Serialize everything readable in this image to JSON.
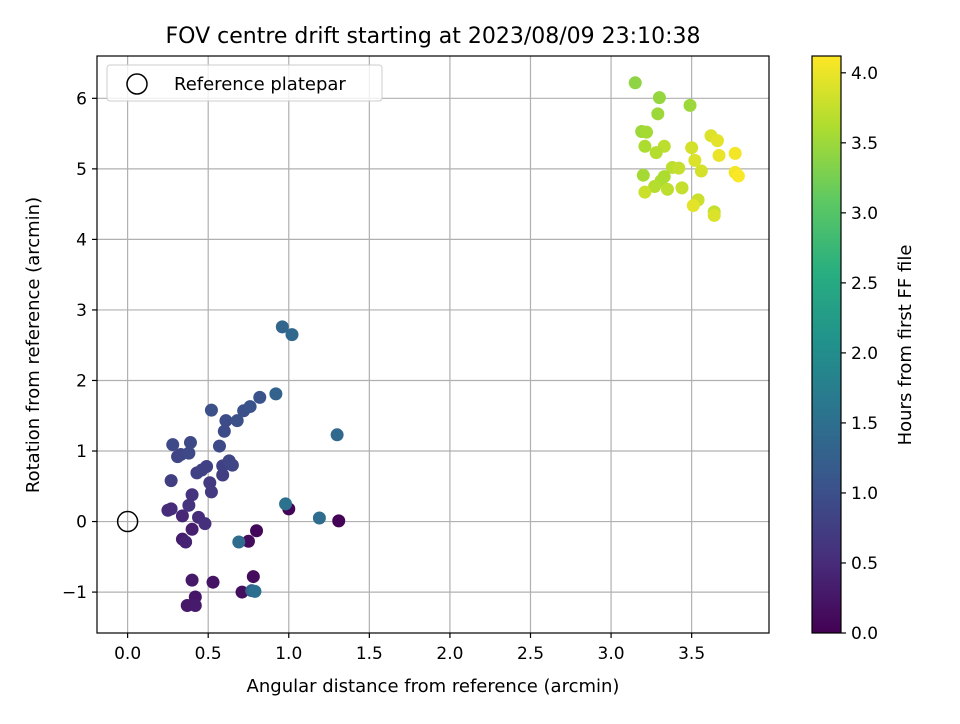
{
  "chart_data": {
    "type": "scatter",
    "title": "FOV centre drift starting at 2023/08/09 23:10:38",
    "xlabel": "Angular distance from reference (arcmin)",
    "ylabel": "Rotation from reference (arcmin)",
    "xlim": [
      -0.19,
      3.98
    ],
    "ylim": [
      -1.58,
      6.6
    ],
    "x_ticks": [
      "0.0",
      "0.5",
      "1.0",
      "1.5",
      "2.0",
      "2.5",
      "3.0",
      "3.5"
    ],
    "y_ticks": [
      "−1",
      "0",
      "1",
      "2",
      "3",
      "4",
      "5",
      "6"
    ],
    "grid": true,
    "legend": {
      "location": "top-left",
      "entries": [
        "Reference platepar"
      ]
    },
    "colorbar": {
      "label": "Hours from first FF file",
      "colormap": "viridis",
      "range": [
        0.0,
        4.12
      ],
      "ticks": [
        "0.0",
        "0.5",
        "1.0",
        "1.5",
        "2.0",
        "2.5",
        "3.0",
        "3.5",
        "4.0"
      ]
    },
    "reference_point": {
      "x": 0.0,
      "y": 0.0
    },
    "points": [
      {
        "x": 1.31,
        "y": 0.01,
        "c": 0.02
      },
      {
        "x": 1.0,
        "y": 0.18,
        "c": 0.05
      },
      {
        "x": 0.8,
        "y": -0.13,
        "c": 0.08
      },
      {
        "x": 0.75,
        "y": -0.28,
        "c": 0.12
      },
      {
        "x": 0.78,
        "y": -0.78,
        "c": 0.12
      },
      {
        "x": 0.71,
        "y": -1.0,
        "c": 0.16
      },
      {
        "x": 0.53,
        "y": -0.86,
        "c": 0.22
      },
      {
        "x": 0.4,
        "y": -0.83,
        "c": 0.28
      },
      {
        "x": 0.42,
        "y": -1.07,
        "c": 0.25
      },
      {
        "x": 0.37,
        "y": -1.19,
        "c": 0.28
      },
      {
        "x": 0.42,
        "y": -1.19,
        "c": 0.3
      },
      {
        "x": 0.34,
        "y": -0.25,
        "c": 0.33
      },
      {
        "x": 0.36,
        "y": -0.29,
        "c": 0.4
      },
      {
        "x": 0.4,
        "y": -0.11,
        "c": 0.35
      },
      {
        "x": 0.34,
        "y": 0.08,
        "c": 0.45
      },
      {
        "x": 0.25,
        "y": 0.16,
        "c": 0.5
      },
      {
        "x": 0.27,
        "y": 0.18,
        "c": 0.5
      },
      {
        "x": 0.44,
        "y": 0.06,
        "c": 0.5
      },
      {
        "x": 0.48,
        "y": -0.03,
        "c": 0.55
      },
      {
        "x": 0.38,
        "y": 0.23,
        "c": 0.6
      },
      {
        "x": 0.4,
        "y": 0.38,
        "c": 0.6
      },
      {
        "x": 0.52,
        "y": 0.42,
        "c": 0.7
      },
      {
        "x": 0.51,
        "y": 0.55,
        "c": 0.7
      },
      {
        "x": 0.27,
        "y": 0.58,
        "c": 0.75
      },
      {
        "x": 0.59,
        "y": 0.66,
        "c": 0.75
      },
      {
        "x": 0.43,
        "y": 0.69,
        "c": 0.8
      },
      {
        "x": 0.46,
        "y": 0.73,
        "c": 0.8
      },
      {
        "x": 0.49,
        "y": 0.78,
        "c": 0.8
      },
      {
        "x": 0.59,
        "y": 0.79,
        "c": 0.8
      },
      {
        "x": 0.63,
        "y": 0.86,
        "c": 0.85
      },
      {
        "x": 0.65,
        "y": 0.8,
        "c": 0.85
      },
      {
        "x": 0.31,
        "y": 0.92,
        "c": 0.85
      },
      {
        "x": 0.33,
        "y": 0.95,
        "c": 0.85
      },
      {
        "x": 0.38,
        "y": 0.97,
        "c": 0.9
      },
      {
        "x": 0.28,
        "y": 1.09,
        "c": 0.9
      },
      {
        "x": 0.39,
        "y": 1.12,
        "c": 0.9
      },
      {
        "x": 0.57,
        "y": 1.07,
        "c": 0.9
      },
      {
        "x": 0.6,
        "y": 1.28,
        "c": 0.95
      },
      {
        "x": 0.61,
        "y": 1.43,
        "c": 0.95
      },
      {
        "x": 0.68,
        "y": 1.43,
        "c": 1.0
      },
      {
        "x": 0.52,
        "y": 1.58,
        "c": 1.0
      },
      {
        "x": 0.72,
        "y": 1.57,
        "c": 1.0
      },
      {
        "x": 0.76,
        "y": 1.63,
        "c": 1.05
      },
      {
        "x": 0.82,
        "y": 1.76,
        "c": 1.05
      },
      {
        "x": 0.92,
        "y": 1.81,
        "c": 1.3
      },
      {
        "x": 0.96,
        "y": 2.76,
        "c": 1.35
      },
      {
        "x": 1.02,
        "y": 2.65,
        "c": 1.4
      },
      {
        "x": 1.3,
        "y": 1.23,
        "c": 1.4
      },
      {
        "x": 1.19,
        "y": 0.05,
        "c": 1.45
      },
      {
        "x": 0.98,
        "y": 0.25,
        "c": 1.55
      },
      {
        "x": 0.69,
        "y": -0.29,
        "c": 1.45
      },
      {
        "x": 0.77,
        "y": -0.98,
        "c": 1.3
      },
      {
        "x": 0.79,
        "y": -0.99,
        "c": 1.5
      },
      {
        "x": 3.15,
        "y": 6.22,
        "c": 3.4
      },
      {
        "x": 3.3,
        "y": 6.01,
        "c": 3.45
      },
      {
        "x": 3.49,
        "y": 5.9,
        "c": 3.5
      },
      {
        "x": 3.29,
        "y": 5.78,
        "c": 3.5
      },
      {
        "x": 3.19,
        "y": 5.53,
        "c": 3.5
      },
      {
        "x": 3.22,
        "y": 5.52,
        "c": 3.55
      },
      {
        "x": 3.62,
        "y": 5.47,
        "c": 3.9
      },
      {
        "x": 3.66,
        "y": 5.4,
        "c": 3.95
      },
      {
        "x": 3.21,
        "y": 5.32,
        "c": 3.6
      },
      {
        "x": 3.33,
        "y": 5.32,
        "c": 3.7
      },
      {
        "x": 3.28,
        "y": 5.23,
        "c": 3.65
      },
      {
        "x": 3.5,
        "y": 5.3,
        "c": 3.85
      },
      {
        "x": 3.67,
        "y": 5.19,
        "c": 4.0
      },
      {
        "x": 3.77,
        "y": 5.22,
        "c": 4.05
      },
      {
        "x": 3.52,
        "y": 5.12,
        "c": 3.9
      },
      {
        "x": 3.38,
        "y": 5.02,
        "c": 3.7
      },
      {
        "x": 3.42,
        "y": 5.01,
        "c": 3.75
      },
      {
        "x": 3.56,
        "y": 4.97,
        "c": 3.85
      },
      {
        "x": 3.77,
        "y": 4.95,
        "c": 4.05
      },
      {
        "x": 3.79,
        "y": 4.9,
        "c": 4.1
      },
      {
        "x": 3.2,
        "y": 4.91,
        "c": 3.55
      },
      {
        "x": 3.33,
        "y": 4.89,
        "c": 3.6
      },
      {
        "x": 3.31,
        "y": 4.83,
        "c": 3.6
      },
      {
        "x": 3.27,
        "y": 4.75,
        "c": 3.65
      },
      {
        "x": 3.35,
        "y": 4.71,
        "c": 3.7
      },
      {
        "x": 3.44,
        "y": 4.73,
        "c": 3.75
      },
      {
        "x": 3.21,
        "y": 4.67,
        "c": 3.8
      },
      {
        "x": 3.54,
        "y": 4.56,
        "c": 3.8
      },
      {
        "x": 3.51,
        "y": 4.48,
        "c": 3.95
      },
      {
        "x": 3.64,
        "y": 4.39,
        "c": 3.75
      },
      {
        "x": 3.64,
        "y": 4.34,
        "c": 3.9
      }
    ]
  }
}
